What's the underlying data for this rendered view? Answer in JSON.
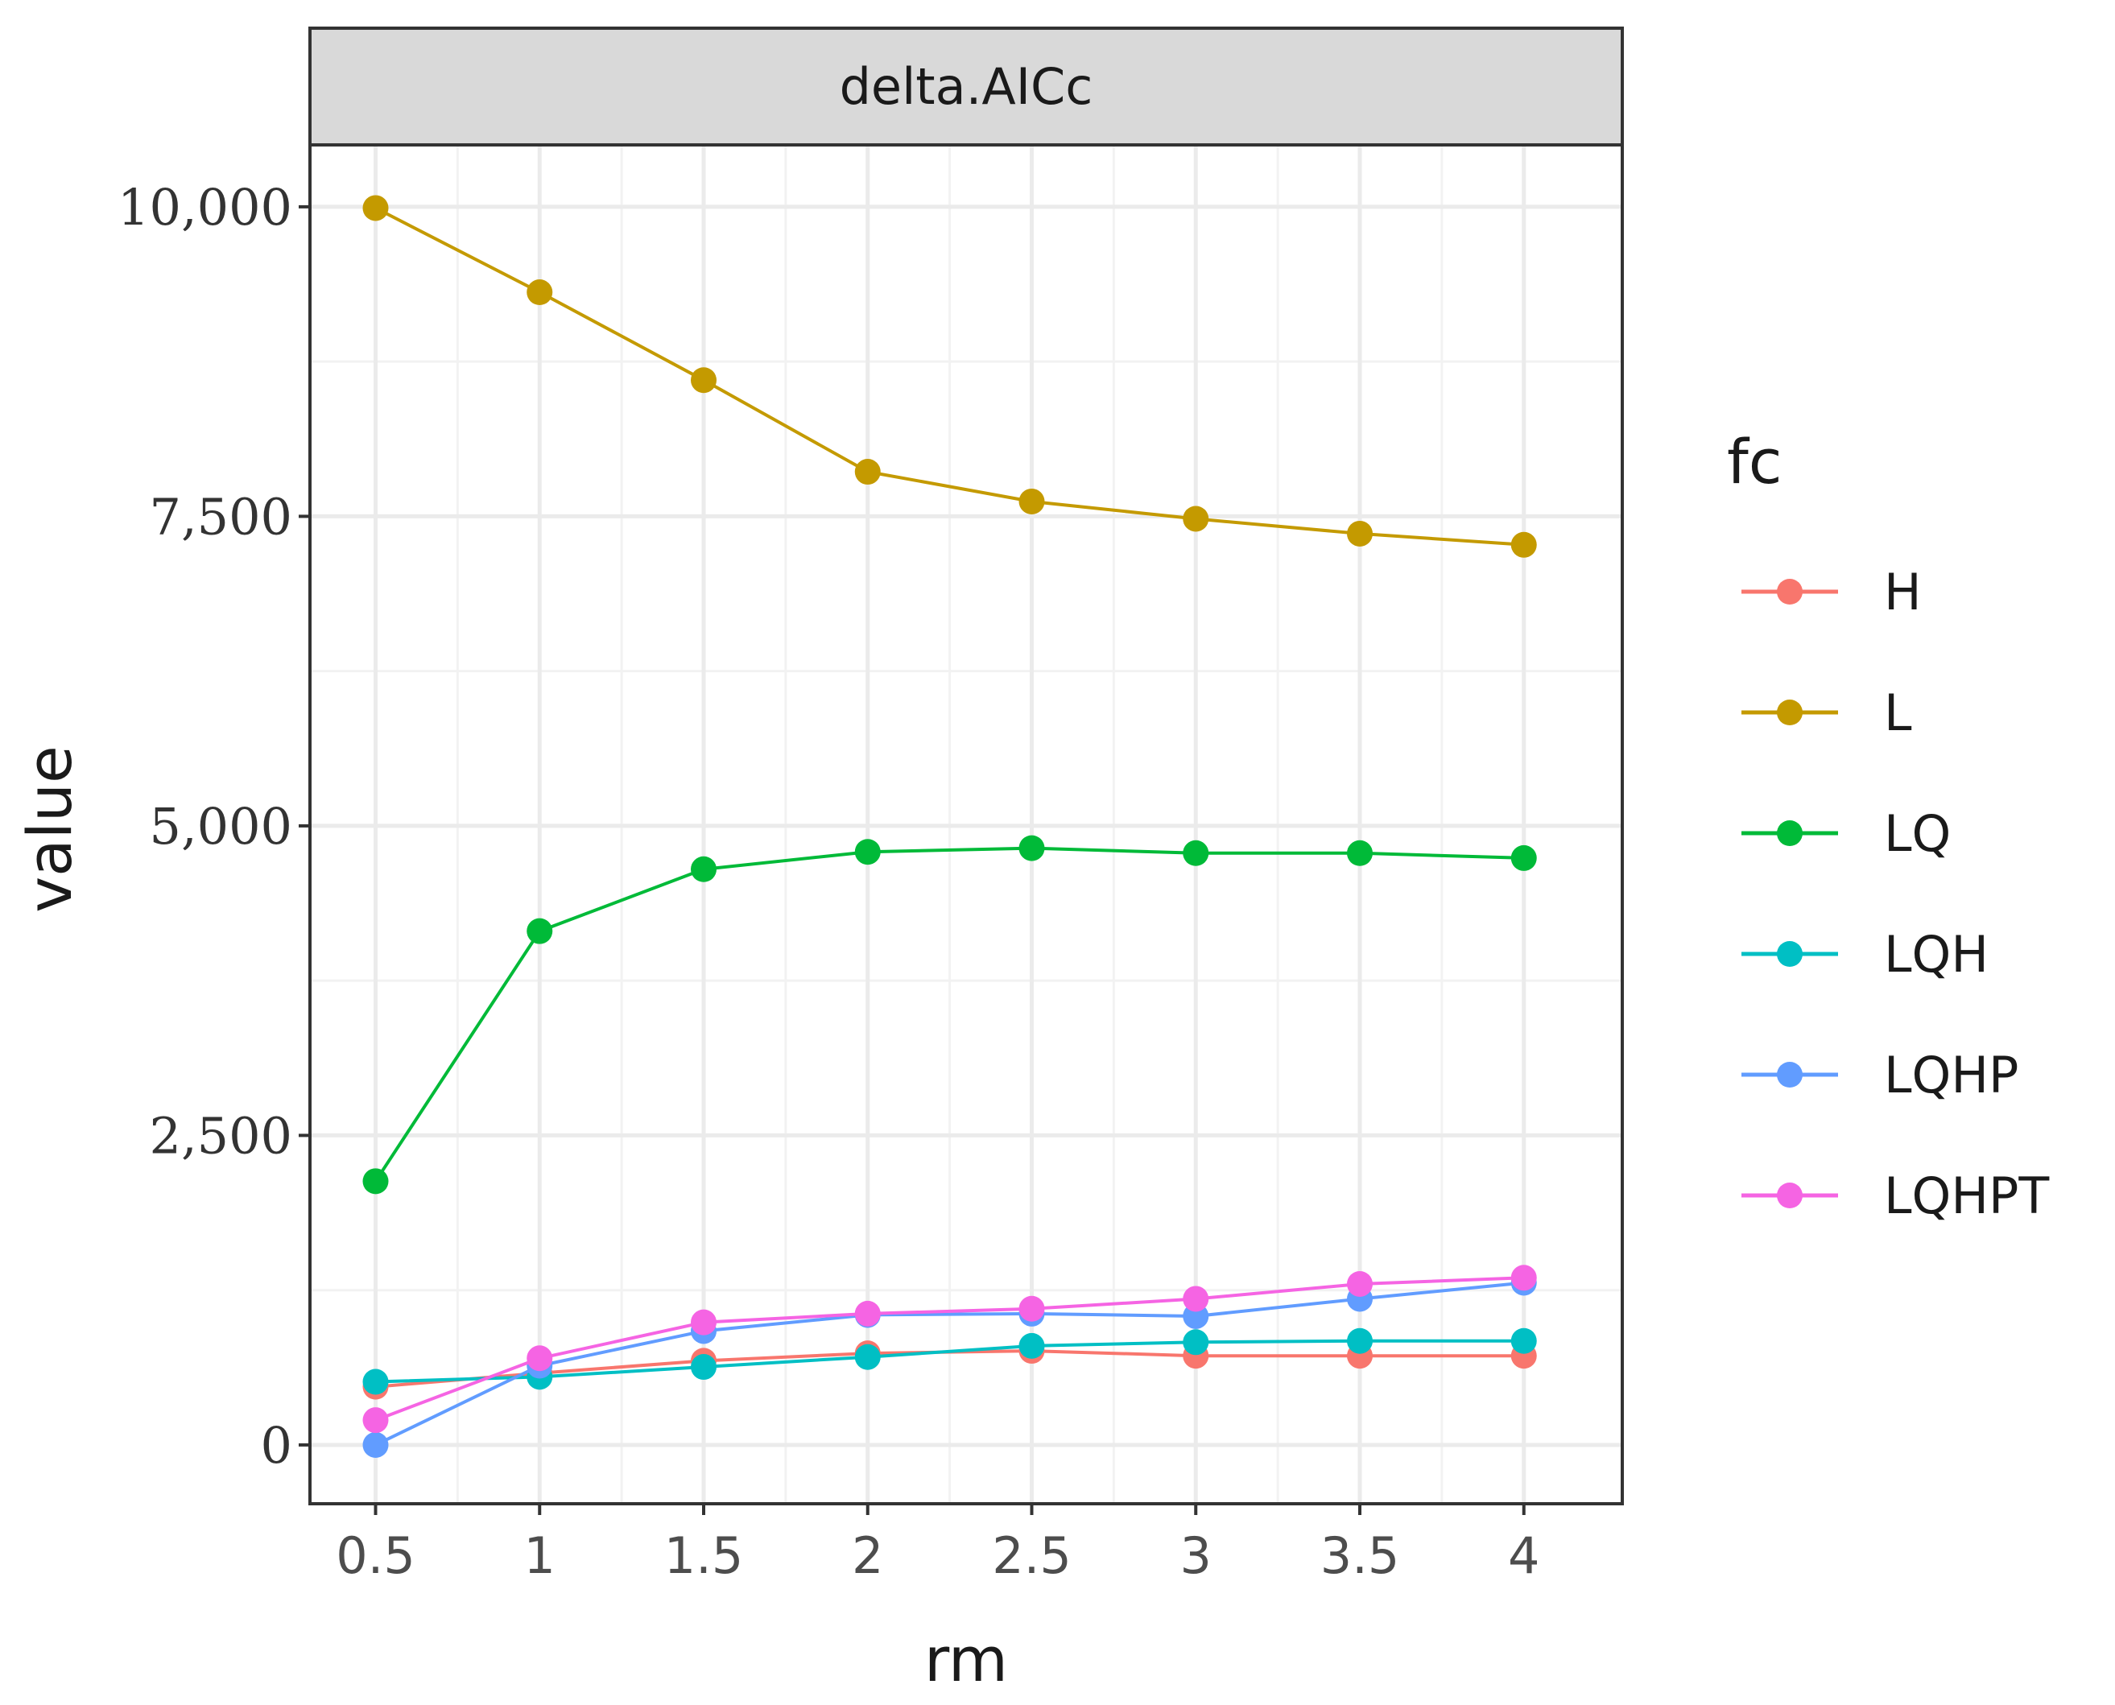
{
  "chart_data": {
    "type": "line",
    "facet_title": "delta.AICc",
    "xlabel": "rm",
    "ylabel": "value",
    "x": [
      0.5,
      1,
      1.5,
      2,
      2.5,
      3,
      3.5,
      4
    ],
    "x_tick_labels": [
      "0.5",
      "1",
      "1.5",
      "2",
      "2.5",
      "3",
      "3.5",
      "4"
    ],
    "y_ticks": [
      0,
      2500,
      5000,
      7500,
      10000
    ],
    "y_tick_labels": [
      "0",
      "2,500",
      "5,000",
      "7,500",
      "10,000"
    ],
    "xlim": [
      0.3,
      4.3
    ],
    "ylim": [
      -475,
      10500
    ],
    "grid": true,
    "legend": {
      "title": "fc",
      "position": "right"
    },
    "series": [
      {
        "name": "H",
        "color": "#F8766D",
        "values": [
          470,
          580,
          680,
          740,
          760,
          720,
          720,
          720
        ]
      },
      {
        "name": "L",
        "color": "#C49A00",
        "values": [
          9990,
          9310,
          8600,
          7860,
          7620,
          7480,
          7360,
          7270
        ]
      },
      {
        "name": "LQ",
        "color": "#00BA38",
        "values": [
          2130,
          4150,
          4650,
          4790,
          4820,
          4780,
          4780,
          4740
        ]
      },
      {
        "name": "LQH",
        "color": "#00BFC4",
        "values": [
          510,
          550,
          630,
          710,
          800,
          830,
          840,
          840
        ]
      },
      {
        "name": "LQHP",
        "color": "#619CFF",
        "values": [
          0,
          640,
          920,
          1050,
          1060,
          1040,
          1180,
          1310
        ]
      },
      {
        "name": "LQHPT",
        "color": "#F564E3",
        "values": [
          200,
          700,
          990,
          1060,
          1100,
          1180,
          1300,
          1350
        ]
      }
    ]
  }
}
